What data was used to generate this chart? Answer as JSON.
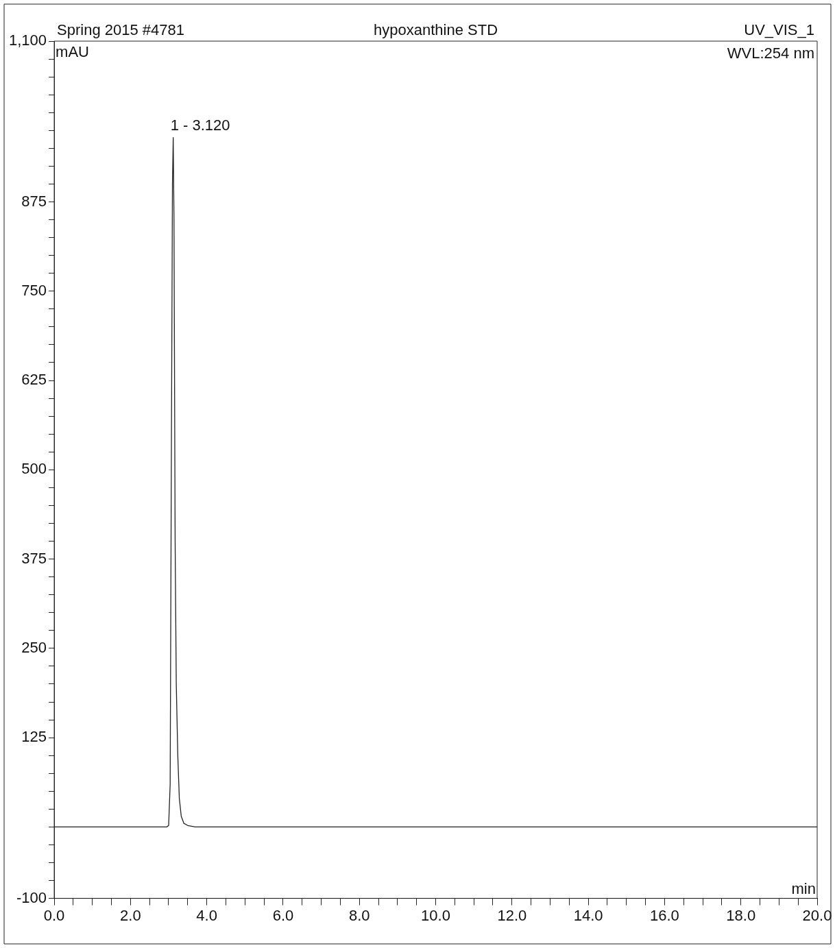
{
  "chart_data": {
    "type": "line",
    "title": "hypoxanthine STD",
    "xlabel": "min",
    "ylabel": "mAU",
    "annotations": [
      "Spring 2015 #4781",
      "UV_VIS_1",
      "WVL:254 nm",
      {
        "text": "1 - 3.120",
        "x": 3.12,
        "y": 965
      }
    ],
    "series": [
      {
        "color": "#222222",
        "x": [
          0,
          1,
          2,
          2.95,
          3.0,
          3.04,
          3.07,
          3.1,
          3.12,
          3.14,
          3.17,
          3.2,
          3.24,
          3.28,
          3.33,
          3.4,
          3.5,
          3.7,
          4,
          6,
          8,
          10,
          12,
          14,
          16,
          18,
          20
        ],
        "values": [
          0,
          0,
          0,
          0,
          2,
          60,
          500,
          900,
          965,
          850,
          400,
          200,
          100,
          40,
          15,
          5,
          2,
          0,
          0,
          0,
          0,
          0,
          0,
          0,
          0,
          0,
          0
        ]
      }
    ],
    "marker": "none",
    "line_style": "solid",
    "grid": false,
    "legend": false,
    "xlim": [
      0,
      20
    ],
    "xticks": [
      {
        "value": 0,
        "label": "0.0"
      },
      {
        "value": 0.5,
        "label": null
      },
      {
        "value": 1,
        "label": null
      },
      {
        "value": 1.5,
        "label": null
      },
      {
        "value": 2,
        "label": "2.0"
      },
      {
        "value": 2.5,
        "label": null
      },
      {
        "value": 3,
        "label": null
      },
      {
        "value": 3.5,
        "label": null
      },
      {
        "value": 4,
        "label": "4.0"
      },
      {
        "value": 4.5,
        "label": null
      },
      {
        "value": 5,
        "label": null
      },
      {
        "value": 5.5,
        "label": null
      },
      {
        "value": 6,
        "label": "6.0"
      },
      {
        "value": 6.5,
        "label": null
      },
      {
        "value": 7,
        "label": null
      },
      {
        "value": 7.5,
        "label": null
      },
      {
        "value": 8,
        "label": "8.0"
      },
      {
        "value": 8.5,
        "label": null
      },
      {
        "value": 9,
        "label": null
      },
      {
        "value": 9.5,
        "label": null
      },
      {
        "value": 10,
        "label": "10.0"
      },
      {
        "value": 10.5,
        "label": null
      },
      {
        "value": 11,
        "label": null
      },
      {
        "value": 11.5,
        "label": null
      },
      {
        "value": 12,
        "label": "12.0"
      },
      {
        "value": 12.5,
        "label": null
      },
      {
        "value": 13,
        "label": null
      },
      {
        "value": 13.5,
        "label": null
      },
      {
        "value": 14,
        "label": "14.0"
      },
      {
        "value": 14.5,
        "label": null
      },
      {
        "value": 15,
        "label": null
      },
      {
        "value": 15.5,
        "label": null
      },
      {
        "value": 16,
        "label": "16.0"
      },
      {
        "value": 16.5,
        "label": null
      },
      {
        "value": 17,
        "label": null
      },
      {
        "value": 17.5,
        "label": null
      },
      {
        "value": 18,
        "label": "18.0"
      },
      {
        "value": 18.5,
        "label": null
      },
      {
        "value": 19,
        "label": null
      },
      {
        "value": 19.5,
        "label": null
      },
      {
        "value": 20,
        "label": "20.0"
      }
    ],
    "ylim": [
      -100,
      1100
    ],
    "yticks": [
      -100,
      {
        "value": -75,
        "label": null
      },
      {
        "value": -50,
        "label": null
      },
      {
        "value": -25,
        "label": null
      },
      {
        "value": 0,
        "label": null
      },
      {
        "value": 25,
        "label": null
      },
      {
        "value": 50,
        "label": null
      },
      {
        "value": 75,
        "label": null
      },
      {
        "value": 100,
        "label": null
      },
      125,
      {
        "value": 150,
        "label": null
      },
      {
        "value": 175,
        "label": null
      },
      {
        "value": 200,
        "label": null
      },
      {
        "value": 225,
        "label": null
      },
      250,
      {
        "value": 275,
        "label": null
      },
      {
        "value": 300,
        "label": null
      },
      {
        "value": 325,
        "label": null
      },
      {
        "value": 350,
        "label": null
      },
      375,
      {
        "value": 400,
        "label": null
      },
      {
        "value": 425,
        "label": null
      },
      {
        "value": 450,
        "label": null
      },
      {
        "value": 475,
        "label": null
      },
      500,
      {
        "value": 525,
        "label": null
      },
      {
        "value": 550,
        "label": null
      },
      {
        "value": 575,
        "label": null
      },
      {
        "value": 600,
        "label": null
      },
      625,
      {
        "value": 650,
        "label": null
      },
      {
        "value": 675,
        "label": null
      },
      {
        "value": 700,
        "label": null
      },
      {
        "value": 725,
        "label": null
      },
      750,
      {
        "value": 775,
        "label": null
      },
      {
        "value": 800,
        "label": null
      },
      {
        "value": 825,
        "label": null
      },
      {
        "value": 850,
        "label": null
      },
      875,
      {
        "value": 900,
        "label": null
      },
      {
        "value": 925,
        "label": null
      },
      {
        "value": 950,
        "label": null
      },
      {
        "value": 975,
        "label": null
      },
      {
        "value": 1000,
        "label": null
      },
      {
        "value": 1025,
        "label": null
      },
      {
        "value": 1050,
        "label": null
      },
      {
        "value": 1075,
        "label": null
      },
      {
        "value": 1100,
        "label": "1,100"
      }
    ]
  }
}
